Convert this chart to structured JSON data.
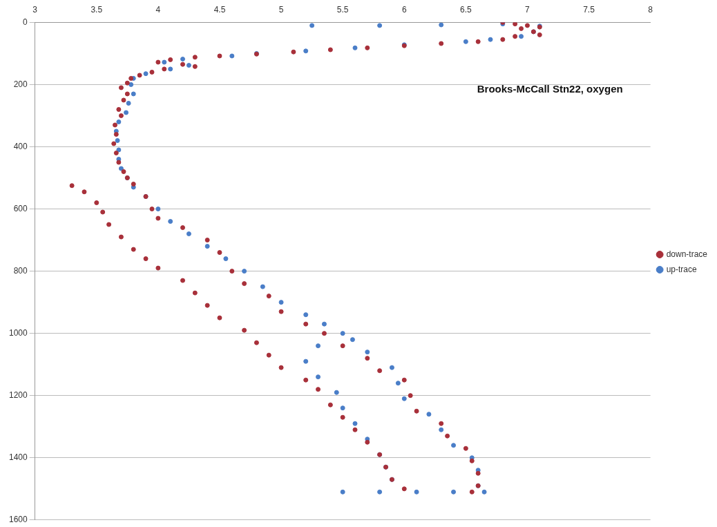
{
  "chart_data": {
    "type": "scatter",
    "title": "Brooks-McCall Stn22, oxygen",
    "xlim": [
      3,
      8
    ],
    "xticks": [
      3,
      3.5,
      4,
      4.5,
      5,
      5.5,
      6,
      6.5,
      7,
      7.5,
      8
    ],
    "ylim": [
      1600,
      0
    ],
    "yticks": [
      0,
      200,
      400,
      600,
      800,
      1000,
      1200,
      1400,
      1600
    ],
    "grid": "y",
    "legend": "right",
    "marker": "circle",
    "series": [
      {
        "name": "down-trace",
        "color": "#a8303a",
        "x": [
          6.8,
          6.9,
          7.0,
          7.1,
          6.95,
          7.05,
          7.1,
          6.9,
          6.8,
          6.6,
          6.3,
          6.0,
          5.7,
          5.4,
          5.1,
          4.8,
          4.5,
          4.3,
          4.1,
          4.0,
          4.2,
          4.3,
          4.05,
          3.95,
          3.85,
          3.78,
          3.75,
          3.7,
          3.75,
          3.72,
          3.68,
          3.7,
          3.65,
          3.66,
          3.64,
          3.66,
          3.68,
          3.72,
          3.75,
          3.3,
          3.8,
          3.4,
          3.9,
          3.5,
          3.95,
          3.55,
          4.0,
          3.6,
          4.2,
          3.7,
          4.4,
          3.8,
          4.5,
          3.9,
          4.0,
          4.6,
          4.2,
          4.7,
          4.3,
          4.9,
          4.4,
          5.0,
          4.5,
          5.2,
          4.7,
          5.35,
          4.8,
          5.5,
          4.9,
          5.7,
          5.0,
          5.8,
          5.2,
          6.0,
          5.3,
          6.05,
          5.4,
          6.1,
          5.5,
          6.3,
          5.6,
          6.35,
          5.7,
          6.5,
          5.8,
          6.55,
          5.85,
          6.6,
          5.9,
          6.6,
          6.0,
          6.55
        ],
        "values": [
          0,
          5,
          10,
          15,
          20,
          30,
          40,
          45,
          55,
          62,
          68,
          75,
          82,
          88,
          95,
          102,
          108,
          112,
          120,
          128,
          135,
          142,
          150,
          160,
          170,
          180,
          195,
          210,
          230,
          250,
          280,
          300,
          330,
          360,
          390,
          420,
          450,
          480,
          500,
          525,
          520,
          545,
          560,
          580,
          600,
          610,
          630,
          650,
          660,
          690,
          700,
          730,
          740,
          760,
          790,
          800,
          830,
          840,
          870,
          880,
          910,
          930,
          950,
          970,
          990,
          1000,
          1030,
          1040,
          1070,
          1080,
          1110,
          1120,
          1150,
          1150,
          1180,
          1200,
          1230,
          1250,
          1270,
          1290,
          1310,
          1330,
          1350,
          1370,
          1390,
          1410,
          1430,
          1450,
          1470,
          1490,
          1500,
          1510
        ]
      },
      {
        "name": "up-trace",
        "color": "#4a7ec8",
        "x": [
          5.25,
          5.8,
          6.3,
          6.8,
          7.1,
          7.05,
          6.95,
          6.7,
          6.5,
          6.0,
          5.6,
          5.2,
          4.8,
          4.6,
          4.2,
          4.05,
          4.25,
          4.1,
          3.9,
          3.8,
          3.78,
          3.8,
          3.76,
          3.74,
          3.68,
          3.66,
          3.67,
          3.68,
          3.68,
          3.7,
          3.75,
          3.8,
          3.9,
          4.0,
          4.1,
          4.25,
          4.4,
          4.55,
          4.7,
          4.85,
          5.0,
          5.2,
          5.35,
          5.5,
          5.58,
          5.3,
          5.7,
          5.2,
          5.9,
          5.3,
          5.95,
          5.45,
          6.0,
          5.5,
          6.2,
          5.6,
          6.3,
          5.7,
          6.4,
          5.8,
          6.55,
          5.85,
          6.6,
          5.9,
          6.6,
          5.5,
          5.8,
          6.1,
          6.4,
          6.65
        ],
        "values": [
          10,
          10,
          8,
          5,
          12,
          30,
          45,
          55,
          62,
          72,
          82,
          92,
          100,
          108,
          118,
          128,
          138,
          150,
          165,
          180,
          200,
          230,
          260,
          290,
          320,
          350,
          380,
          410,
          440,
          470,
          500,
          530,
          560,
          600,
          640,
          680,
          720,
          760,
          800,
          850,
          900,
          940,
          970,
          1000,
          1020,
          1040,
          1060,
          1090,
          1110,
          1140,
          1160,
          1190,
          1210,
          1240,
          1260,
          1290,
          1310,
          1340,
          1360,
          1390,
          1400,
          1430,
          1440,
          1470,
          1490,
          1510,
          1510,
          1510,
          1510,
          1510
        ]
      }
    ]
  }
}
